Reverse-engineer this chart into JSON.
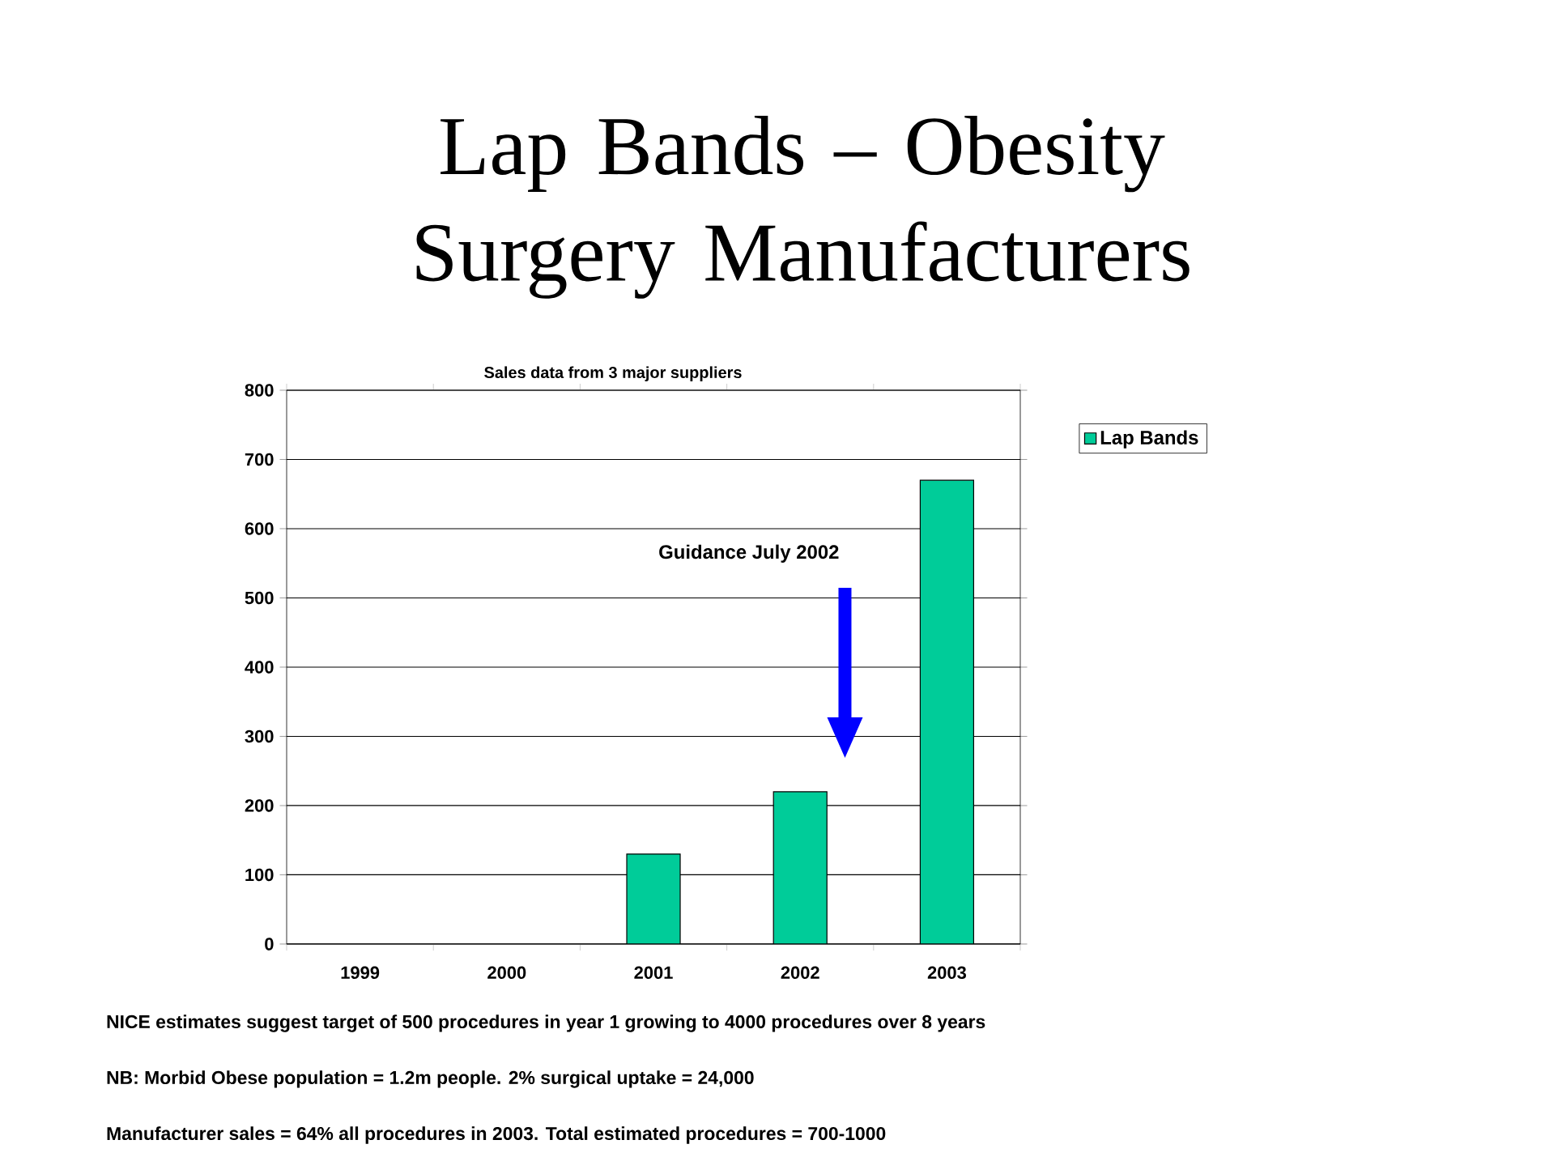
{
  "chart_data": {
    "type": "bar",
    "title": "Lap Bands – Obesity Surgery Manufacturers",
    "subtitle": "Sales data from 3 major suppliers",
    "categories": [
      "1999",
      "2000",
      "2001",
      "2002",
      "2003"
    ],
    "series": [
      {
        "name": "Lap Bands",
        "color": "#00cc99",
        "values": [
          null,
          null,
          130,
          220,
          670
        ]
      }
    ],
    "ylim": [
      0,
      800
    ],
    "yticks": [
      0,
      100,
      200,
      300,
      400,
      500,
      600,
      700,
      800
    ],
    "grid": "y",
    "legend": "right",
    "annotations": [
      "Guidance July 2002",
      "NICE estimates suggest target of 500 procedures in year 1 growing to 4000 procedures over 8 years",
      "NB: Morbid Obese population = 1.2m people. 2% surgical uptake = 24,000",
      "Manufacturer sales = 64% all procedures in 2003. Total estimated procedures = 700-1000"
    ]
  }
}
